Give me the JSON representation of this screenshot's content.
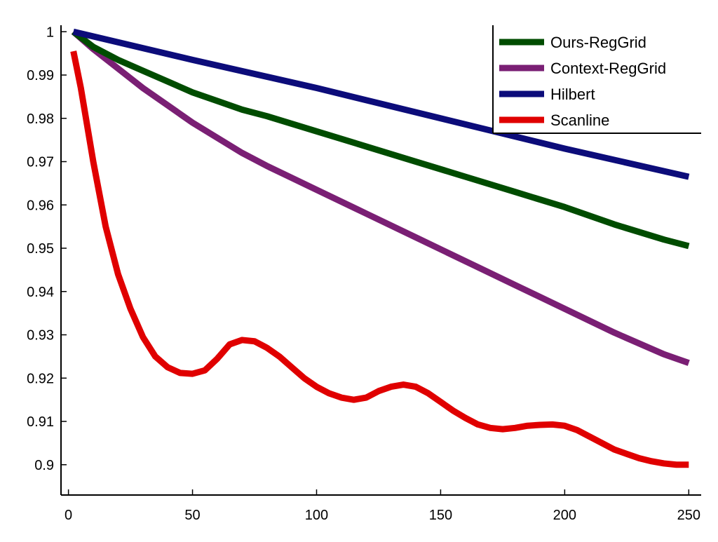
{
  "chart_data": {
    "type": "line",
    "title": "",
    "xlabel": "",
    "ylabel": "",
    "xlim": [
      -3,
      255
    ],
    "ylim": [
      0.893,
      1.0015
    ],
    "x_ticks": [
      0,
      50,
      100,
      150,
      200,
      250
    ],
    "x_tick_labels": [
      "0",
      "50",
      "100",
      "150",
      "200",
      "250"
    ],
    "y_ticks": [
      0.9,
      0.91,
      0.92,
      0.93,
      0.94,
      0.95,
      0.96,
      0.97,
      0.98,
      0.99,
      1
    ],
    "y_tick_labels": [
      "0.9",
      "0.91",
      "0.92",
      "0.93",
      "0.94",
      "0.95",
      "0.96",
      "0.97",
      "0.98",
      "0.99",
      "1"
    ],
    "grid": false,
    "legend_position": "top-right",
    "series": [
      {
        "name": "Ours-RegGrid",
        "color": "#004c00",
        "x": [
          2,
          10,
          20,
          30,
          40,
          50,
          60,
          70,
          80,
          100,
          120,
          140,
          160,
          180,
          200,
          220,
          240,
          250
        ],
        "y": [
          1.0,
          0.9965,
          0.9935,
          0.991,
          0.9885,
          0.986,
          0.984,
          0.982,
          0.9805,
          0.977,
          0.9735,
          0.97,
          0.9665,
          0.963,
          0.9595,
          0.9555,
          0.952,
          0.9505
        ]
      },
      {
        "name": "Context-RegGrid",
        "color": "#7a1f74",
        "x": [
          2,
          10,
          20,
          30,
          40,
          50,
          60,
          70,
          80,
          100,
          120,
          140,
          160,
          180,
          200,
          220,
          240,
          250
        ],
        "y": [
          1.0,
          0.996,
          0.9915,
          0.987,
          0.983,
          0.979,
          0.9755,
          0.972,
          0.969,
          0.9635,
          0.958,
          0.9525,
          0.947,
          0.9415,
          0.936,
          0.9305,
          0.9255,
          0.9235
        ]
      },
      {
        "name": "Hilbert",
        "color": "#0c0c7a",
        "x": [
          2,
          50,
          100,
          150,
          200,
          250
        ],
        "y": [
          1.0,
          0.9935,
          0.987,
          0.98,
          0.973,
          0.9665
        ]
      },
      {
        "name": "Scanline",
        "color": "#e00000",
        "x": [
          2,
          5,
          10,
          15,
          20,
          25,
          30,
          35,
          40,
          45,
          50,
          55,
          60,
          65,
          70,
          75,
          80,
          85,
          90,
          95,
          100,
          105,
          110,
          115,
          120,
          125,
          130,
          135,
          140,
          145,
          150,
          155,
          160,
          165,
          170,
          175,
          180,
          185,
          190,
          195,
          200,
          205,
          210,
          215,
          220,
          225,
          230,
          235,
          240,
          245,
          250
        ],
        "y": [
          0.9955,
          0.987,
          0.97,
          0.955,
          0.944,
          0.936,
          0.9295,
          0.925,
          0.9225,
          0.9212,
          0.921,
          0.9218,
          0.9245,
          0.9278,
          0.9288,
          0.9285,
          0.927,
          0.925,
          0.9225,
          0.92,
          0.918,
          0.9165,
          0.9155,
          0.915,
          0.9155,
          0.917,
          0.918,
          0.9185,
          0.918,
          0.9165,
          0.9145,
          0.9125,
          0.9108,
          0.9093,
          0.9085,
          0.9082,
          0.9085,
          0.909,
          0.9092,
          0.9093,
          0.909,
          0.908,
          0.9065,
          0.905,
          0.9035,
          0.9025,
          0.9015,
          0.9008,
          0.9003,
          0.9,
          0.9
        ]
      }
    ]
  }
}
